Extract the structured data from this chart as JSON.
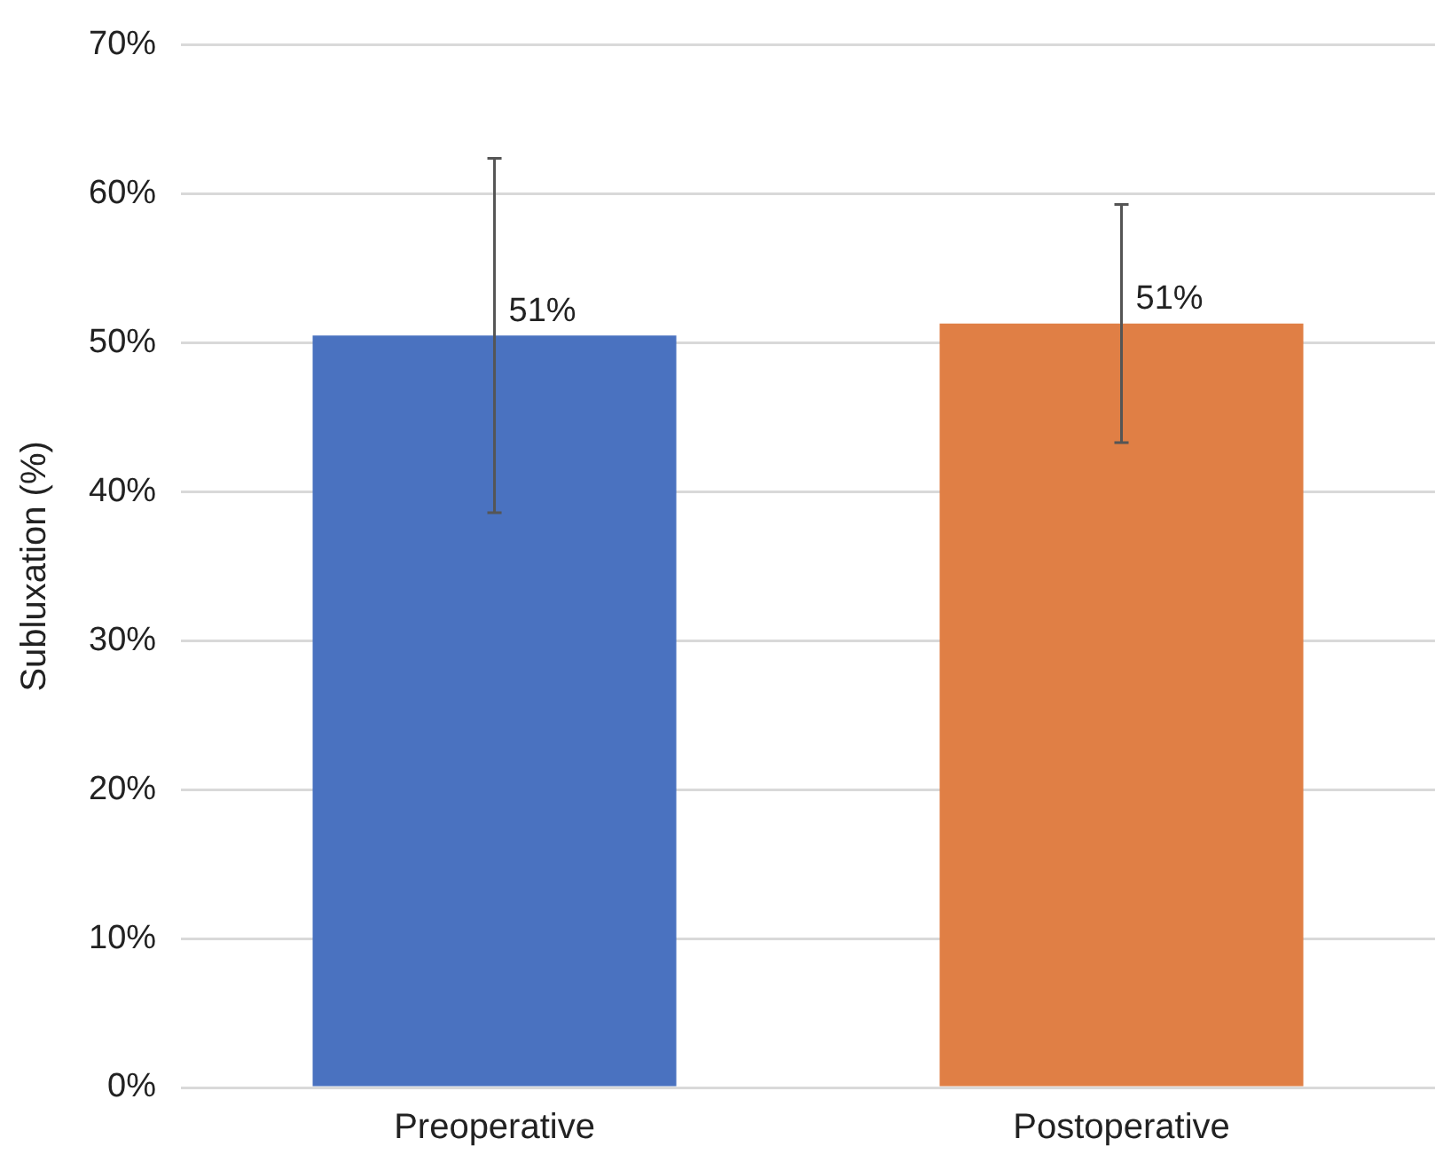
{
  "chart_data": {
    "type": "bar",
    "ylabel": "Subluxation (%)",
    "categories": [
      "Preoperative",
      "Postoperative"
    ],
    "values": [
      50.5,
      51.3
    ],
    "colors": [
      "#4a72c0",
      "#e07f45"
    ],
    "errors": [
      11.9,
      8.0
    ],
    "value_labels": [
      "51%",
      "51%"
    ],
    "ylim": [
      0,
      70
    ],
    "yticks": [
      {
        "value": 0,
        "label": "0%"
      },
      {
        "value": 10,
        "label": "10%"
      },
      {
        "value": 20,
        "label": "20%"
      },
      {
        "value": 30,
        "label": "30%"
      },
      {
        "value": 40,
        "label": "40%"
      },
      {
        "value": 50,
        "label": "50%"
      },
      {
        "value": 60,
        "label": "60%"
      },
      {
        "value": 70,
        "label": "70%"
      }
    ],
    "grid": "y",
    "legend": false
  }
}
